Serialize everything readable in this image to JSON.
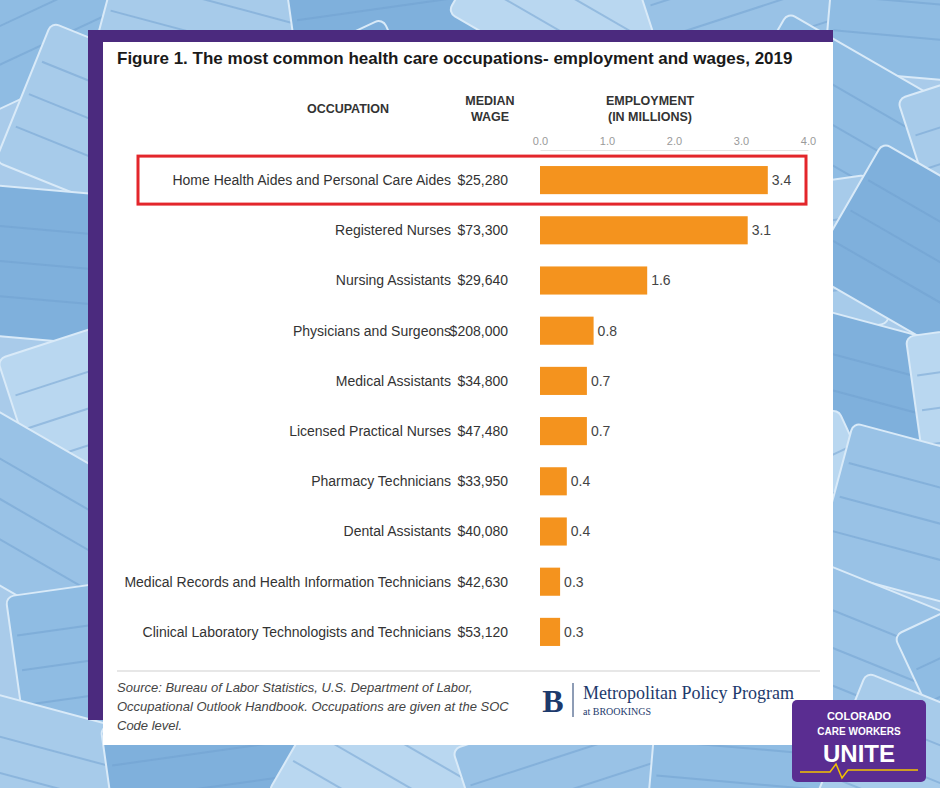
{
  "chart_data": {
    "type": "bar",
    "orientation": "horizontal",
    "title": "Figure 1. The most common health care occupations- employment and wages, 2019",
    "column_headers": [
      "OCCUPATION",
      "MEDIAN WAGE",
      "EMPLOYMENT (IN MILLIONS)"
    ],
    "categories": [
      "Home Health Aides and Personal Care Aides",
      "Registered Nurses",
      "Nursing Assistants",
      "Physicians and Surgeons",
      "Medical Assistants",
      "Licensed Practical Nurses",
      "Pharmacy Technicians",
      "Dental Assistants",
      "Medical Records and Health Information Technicians",
      "Clinical Laboratory Technologists and Technicians"
    ],
    "median_wages": [
      "$25,280",
      "$73,300",
      "$29,640",
      "$208,000",
      "$34,800",
      "$47,480",
      "$33,950",
      "$40,080",
      "$42,630",
      "$53,120"
    ],
    "values": [
      3.4,
      3.1,
      1.6,
      0.8,
      0.7,
      0.7,
      0.4,
      0.4,
      0.3,
      0.3
    ],
    "color": "#f4931e",
    "data_labels": true,
    "grid": false,
    "xlim": [
      0,
      4
    ],
    "xticks": [
      {
        "value": 0,
        "label": "0.0"
      },
      {
        "value": 1,
        "label": "1.0"
      },
      {
        "value": 2,
        "label": "2.0"
      },
      {
        "value": 3,
        "label": "3.0"
      },
      {
        "value": 4,
        "label": "4.0"
      }
    ],
    "source": "Source: Bureau of Labor Statistics, U.S. Department of Labor, Occupational Outlook Handbook. Occupations are given at the SOC Code level."
  },
  "credits": {
    "brookings_letter": "B",
    "brookings_name": "Metropolitan Policy Program",
    "brookings_sub": "at BROOKINGS",
    "logo": [
      "COLORADO",
      "CARE WORKERS",
      "UNITE"
    ]
  }
}
